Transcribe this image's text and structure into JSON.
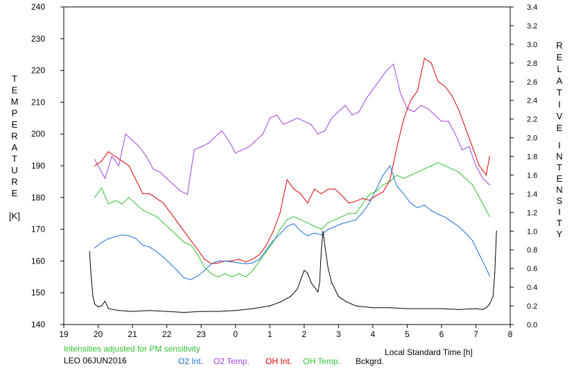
{
  "chart_data": {
    "type": "line",
    "footer": {
      "note": "Intensities adjusted for PM sensitivity",
      "station": "LEO 06JUN2016"
    },
    "xlabel": "Local Standard Time [h]",
    "ylabel_left": [
      "T",
      "E",
      "M",
      "P",
      "E",
      "R",
      "A",
      "T",
      "U",
      "R",
      "E"
    ],
    "ylabel_left_unit": "[K]",
    "ylabel_right_word1": [
      "R",
      "E",
      "L",
      "A",
      "T",
      "I",
      "V",
      "E"
    ],
    "ylabel_right_word2": [
      "I",
      "N",
      "T",
      "E",
      "N",
      "S",
      "I",
      "T",
      "Y"
    ],
    "x_ticks": [
      "19",
      "20",
      "21",
      "22",
      "23",
      "0",
      "1",
      "2",
      "3",
      "4",
      "5",
      "6",
      "7",
      "8"
    ],
    "y_left_ticks": [
      "140",
      "150",
      "160",
      "170",
      "180",
      "190",
      "200",
      "210",
      "220",
      "230",
      "240"
    ],
    "y_right_ticks": [
      "0.0",
      "0.2",
      "0.4",
      "0.6",
      "0.8",
      "1.0",
      "1.2",
      "1.4",
      "1.6",
      "1.8",
      "2.0",
      "2.2",
      "2.4",
      "2.6",
      "2.8",
      "3.0",
      "3.2",
      "3.4"
    ],
    "xlim": [
      19,
      32
    ],
    "ylim_left": [
      140,
      240
    ],
    "ylim_right": [
      0,
      3.4
    ],
    "legend": [
      {
        "label": "O2 Int.",
        "color": "#1a6fd6"
      },
      {
        "label": "O2 Temp.",
        "color": "#a040e0"
      },
      {
        "label": "OH Int.",
        "color": "#e00000"
      },
      {
        "label": "OH Temp.",
        "color": "#30c030"
      },
      {
        "label": "Bckgrd.",
        "color": "#000000"
      }
    ],
    "series": [
      {
        "name": "O2 Temp.",
        "axis": "left",
        "color": "#a040e0",
        "x": [
          19.9,
          20.2,
          20.4,
          20.6,
          20.8,
          21.0,
          21.2,
          21.4,
          21.6,
          21.8,
          22.0,
          22.2,
          22.4,
          22.6,
          22.8,
          23.0,
          23.2,
          23.4,
          23.6,
          23.8,
          24.0,
          24.2,
          24.4,
          24.6,
          24.8,
          25.0,
          25.2,
          25.4,
          25.6,
          25.8,
          26.0,
          26.2,
          26.4,
          26.6,
          26.8,
          27.0,
          27.2,
          27.4,
          27.6,
          27.8,
          28.0,
          28.2,
          28.4,
          28.6,
          28.8,
          29.0,
          29.2,
          29.4,
          29.6,
          29.8,
          30.0,
          30.2,
          30.4,
          30.6,
          30.8,
          31.0,
          31.2,
          31.4
        ],
        "y": [
          192,
          186,
          193,
          190,
          200,
          198,
          196,
          193,
          189,
          188,
          186,
          184,
          182,
          181,
          195,
          196,
          197,
          199,
          201,
          198,
          194,
          195,
          196,
          198,
          200,
          205,
          206,
          203,
          204,
          205,
          204,
          203,
          200,
          201,
          205,
          207,
          209,
          206,
          207,
          211,
          214,
          217,
          220,
          222,
          213,
          208,
          207,
          209,
          208,
          206,
          204,
          204,
          200,
          195,
          196,
          190,
          186,
          184
        ]
      },
      {
        "name": "OH Temp.",
        "axis": "left",
        "color": "#30c030",
        "x": [
          19.9,
          20.1,
          20.3,
          20.5,
          20.7,
          20.9,
          21.1,
          21.3,
          21.5,
          21.7,
          21.9,
          22.1,
          22.3,
          22.5,
          22.7,
          22.9,
          23.1,
          23.3,
          23.5,
          23.7,
          23.9,
          24.1,
          24.3,
          24.5,
          24.7,
          24.9,
          25.1,
          25.3,
          25.5,
          25.7,
          25.9,
          26.1,
          26.3,
          26.5,
          26.7,
          26.9,
          27.1,
          27.3,
          27.5,
          27.7,
          27.9,
          28.1,
          28.3,
          28.5,
          28.7,
          28.9,
          29.1,
          29.3,
          29.5,
          29.7,
          29.9,
          30.1,
          30.3,
          30.5,
          30.7,
          30.9,
          31.1,
          31.3,
          31.4
        ],
        "y": [
          180,
          183,
          178,
          179,
          178,
          180,
          178,
          176,
          175,
          174,
          172,
          170,
          168,
          166,
          165,
          162,
          158,
          156,
          155,
          156,
          155,
          156,
          155,
          157,
          160,
          163,
          166,
          170,
          173,
          174,
          173,
          172,
          171,
          170,
          172,
          173,
          174,
          175,
          175,
          178,
          181,
          182,
          184,
          185,
          187,
          186,
          187,
          188,
          189,
          190,
          191,
          190,
          189,
          188,
          186,
          184,
          180,
          176,
          174
        ]
      },
      {
        "name": "OH Int.",
        "axis": "right",
        "color": "#e00000",
        "x": [
          19.9,
          20.1,
          20.3,
          20.5,
          20.7,
          20.9,
          21.1,
          21.3,
          21.5,
          21.7,
          21.9,
          22.1,
          22.3,
          22.5,
          22.7,
          22.9,
          23.1,
          23.3,
          23.5,
          23.7,
          23.9,
          24.1,
          24.3,
          24.5,
          24.7,
          24.9,
          25.1,
          25.3,
          25.5,
          25.7,
          25.9,
          26.1,
          26.3,
          26.5,
          26.7,
          26.9,
          27.1,
          27.3,
          27.5,
          27.7,
          27.9,
          28.1,
          28.3,
          28.5,
          28.7,
          28.9,
          29.1,
          29.3,
          29.5,
          29.7,
          29.9,
          30.1,
          30.3,
          30.5,
          30.7,
          30.9,
          31.1,
          31.3,
          31.4
        ],
        "y": [
          1.7,
          1.75,
          1.85,
          1.8,
          1.75,
          1.7,
          1.55,
          1.4,
          1.4,
          1.35,
          1.3,
          1.2,
          1.1,
          1.0,
          0.9,
          0.8,
          0.7,
          0.65,
          0.66,
          0.68,
          0.68,
          0.7,
          0.67,
          0.7,
          0.75,
          0.85,
          1.0,
          1.2,
          1.55,
          1.45,
          1.4,
          1.3,
          1.45,
          1.4,
          1.45,
          1.45,
          1.38,
          1.3,
          1.32,
          1.35,
          1.33,
          1.38,
          1.42,
          1.55,
          1.9,
          2.2,
          2.4,
          2.5,
          2.85,
          2.8,
          2.6,
          2.55,
          2.45,
          2.3,
          2.1,
          1.9,
          1.7,
          1.6,
          1.8
        ]
      },
      {
        "name": "O2 Int.",
        "axis": "right",
        "color": "#1a6fd6",
        "x": [
          19.9,
          20.1,
          20.3,
          20.5,
          20.7,
          20.9,
          21.1,
          21.3,
          21.5,
          21.7,
          21.9,
          22.1,
          22.3,
          22.5,
          22.7,
          22.9,
          23.1,
          23.3,
          23.5,
          23.7,
          23.9,
          24.1,
          24.3,
          24.5,
          24.7,
          24.9,
          25.1,
          25.3,
          25.5,
          25.7,
          25.9,
          26.1,
          26.3,
          26.5,
          26.7,
          26.9,
          27.1,
          27.3,
          27.5,
          27.7,
          27.9,
          28.1,
          28.3,
          28.5,
          28.7,
          28.9,
          29.1,
          29.3,
          29.5,
          29.7,
          29.9,
          30.1,
          30.3,
          30.5,
          30.7,
          30.9,
          31.1,
          31.3,
          31.4
        ],
        "y": [
          0.82,
          0.88,
          0.92,
          0.94,
          0.96,
          0.95,
          0.92,
          0.85,
          0.83,
          0.78,
          0.72,
          0.65,
          0.58,
          0.5,
          0.48,
          0.52,
          0.58,
          0.65,
          0.68,
          0.68,
          0.67,
          0.66,
          0.65,
          0.66,
          0.7,
          0.8,
          0.9,
          0.97,
          1.05,
          1.08,
          1.0,
          0.95,
          0.98,
          0.96,
          1.02,
          1.05,
          1.08,
          1.1,
          1.12,
          1.2,
          1.3,
          1.45,
          1.6,
          1.7,
          1.48,
          1.4,
          1.3,
          1.25,
          1.28,
          1.22,
          1.18,
          1.15,
          1.1,
          1.05,
          0.98,
          0.9,
          0.75,
          0.6,
          0.52
        ]
      },
      {
        "name": "Bckgrd.",
        "axis": "right",
        "color": "#000000",
        "x": [
          19.75,
          19.8,
          19.85,
          19.9,
          20.0,
          20.1,
          20.2,
          20.3,
          20.6,
          21.0,
          21.5,
          22.0,
          22.5,
          23.0,
          23.5,
          24.0,
          24.5,
          25.0,
          25.3,
          25.6,
          25.8,
          25.9,
          26.0,
          26.1,
          26.2,
          26.3,
          26.4,
          26.45,
          26.5,
          26.55,
          26.6,
          26.7,
          26.8,
          27.0,
          27.2,
          27.5,
          28.0,
          28.5,
          29.0,
          29.5,
          30.0,
          30.5,
          31.0,
          31.2,
          31.3,
          31.4,
          31.5,
          31.55,
          31.6
        ],
        "y": [
          0.78,
          0.5,
          0.3,
          0.22,
          0.19,
          0.2,
          0.25,
          0.17,
          0.15,
          0.14,
          0.15,
          0.14,
          0.13,
          0.14,
          0.14,
          0.15,
          0.17,
          0.2,
          0.24,
          0.3,
          0.38,
          0.48,
          0.58,
          0.55,
          0.45,
          0.4,
          0.35,
          0.45,
          0.8,
          1.0,
          0.85,
          0.6,
          0.45,
          0.3,
          0.25,
          0.2,
          0.18,
          0.18,
          0.17,
          0.17,
          0.17,
          0.16,
          0.17,
          0.16,
          0.18,
          0.22,
          0.3,
          0.55,
          1.0
        ]
      }
    ]
  }
}
